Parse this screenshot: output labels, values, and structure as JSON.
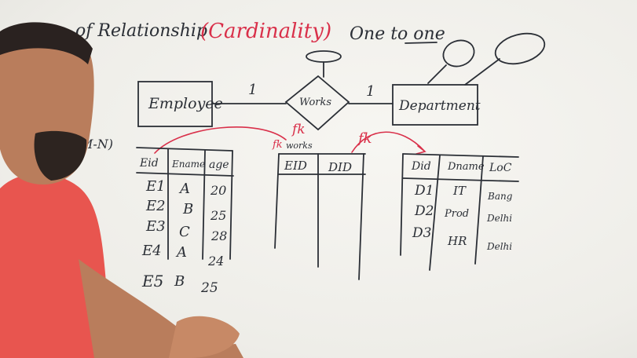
{
  "title": {
    "prefix": "of Relationship",
    "highlight": "(Cardinality)",
    "suffix": "One to one"
  },
  "side_note": "M-N)",
  "entities": {
    "left": "Employee",
    "relationship": "Works",
    "right": "Department"
  },
  "cardinality": {
    "left": "1",
    "right": "1"
  },
  "fk_labels": {
    "works_left": "fk",
    "works_left2": "fk",
    "works_right": "fk",
    "works_small": "works"
  },
  "employee_table": {
    "headers": [
      "Eid",
      "Ename",
      "age"
    ],
    "rows": [
      [
        "E1",
        "A",
        "20"
      ],
      [
        "E2",
        "B",
        "25"
      ],
      [
        "E3",
        "C",
        "28"
      ],
      [
        "E4",
        "A",
        "24"
      ],
      [
        "E5",
        "B",
        "25"
      ]
    ]
  },
  "works_table": {
    "headers": [
      "EID",
      "DID"
    ]
  },
  "department_table": {
    "headers": [
      "Did",
      "Dname",
      "LoC"
    ],
    "rows": [
      [
        "D1",
        "IT",
        "Bang"
      ],
      [
        "D2",
        "Prod",
        "Delhi"
      ],
      [
        "D3",
        "HR",
        "Delhi"
      ]
    ]
  },
  "colors": {
    "ink": "#2b2f36",
    "marker_red": "#d9304a",
    "shirt": "#e8554f",
    "skin": "#b97d5c"
  }
}
